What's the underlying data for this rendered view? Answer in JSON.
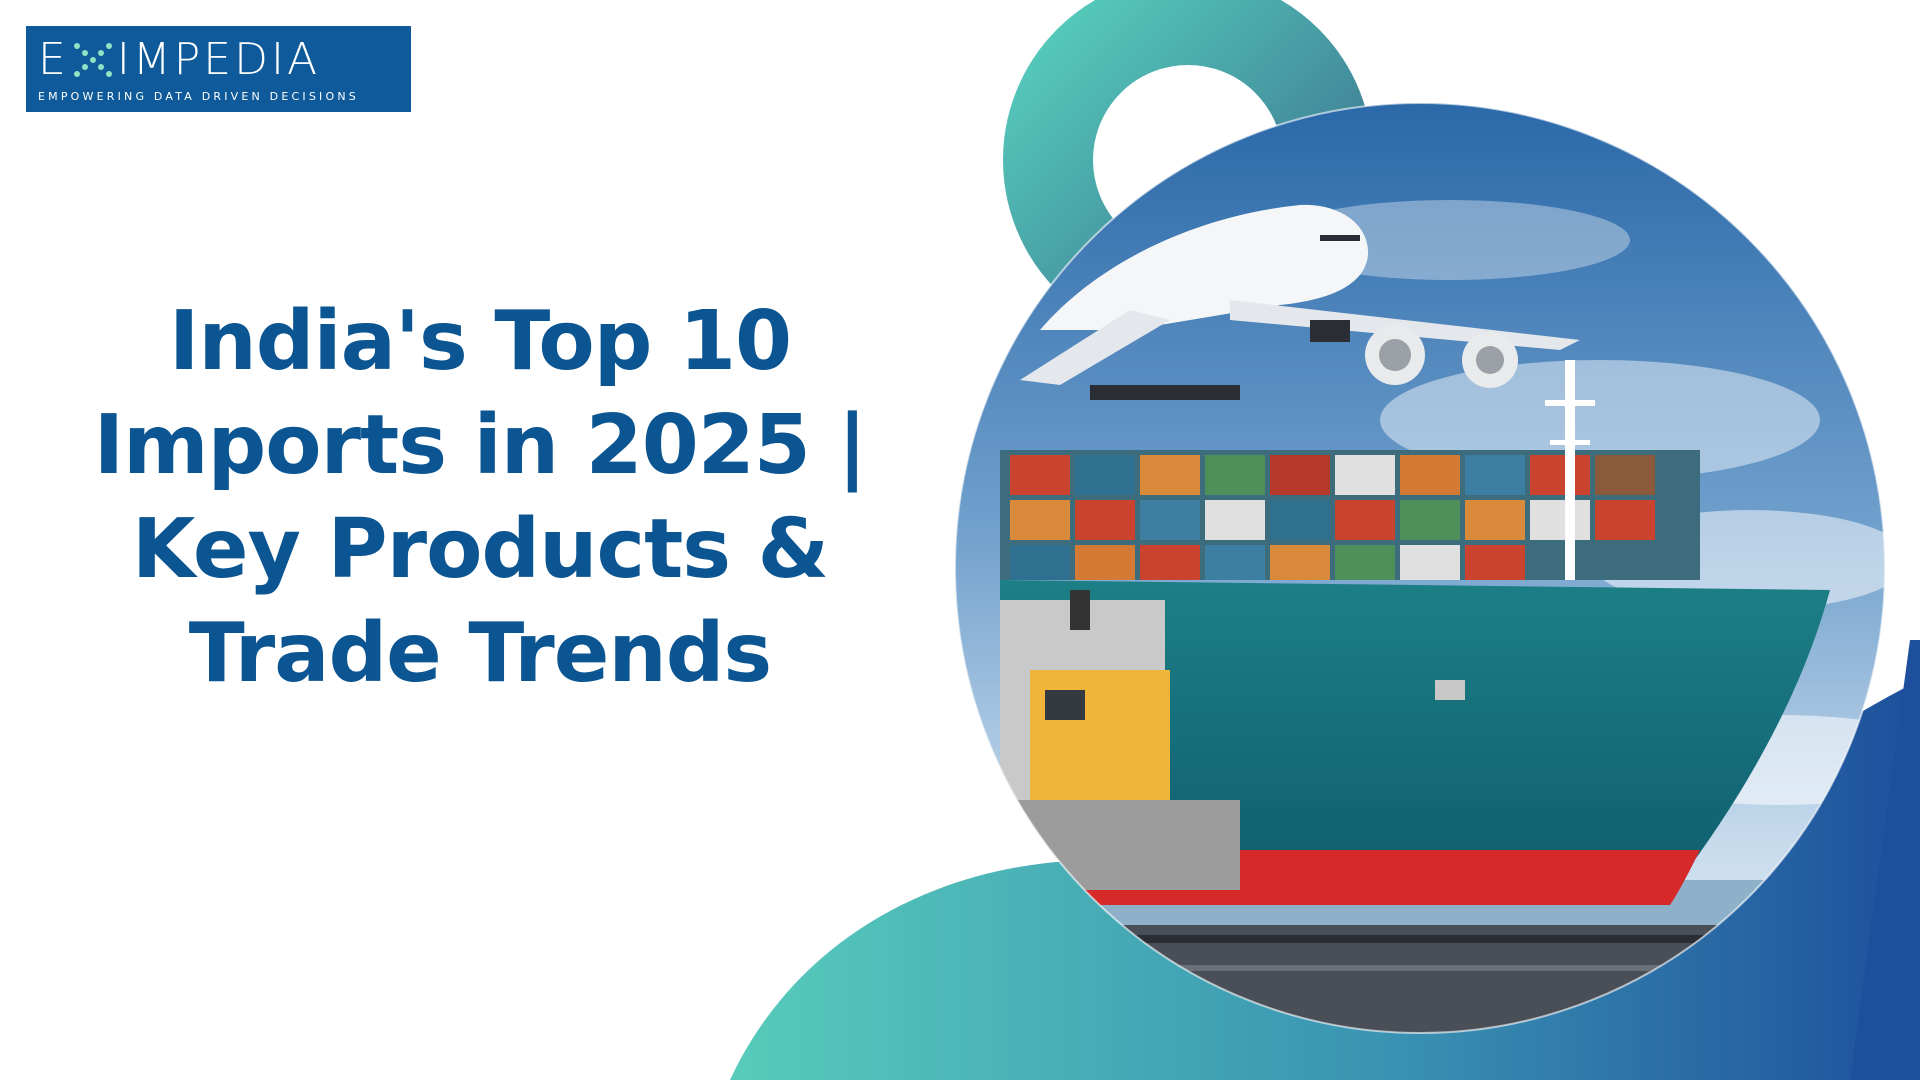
{
  "logo": {
    "wordmark": "EXIMPEDIA",
    "wordmark_prefix": "E",
    "wordmark_suffix": "IMPEDIA",
    "tagline": "EMPOWERING DATA DRIVEN DECISIONS",
    "background_color": "#0e5a9a"
  },
  "title": {
    "lines": [
      "India's Top 10",
      "Imports in 2025 |",
      "Key Products &",
      "Trade Trends"
    ],
    "color": "#0b5592"
  },
  "decor": {
    "teal_color": "#4fc7b8",
    "blue_color": "#1d4f9a",
    "illustration_icons": [
      "airplane-icon",
      "cargo-ship-icon",
      "containers-icon",
      "train-locomotive-icon"
    ]
  }
}
